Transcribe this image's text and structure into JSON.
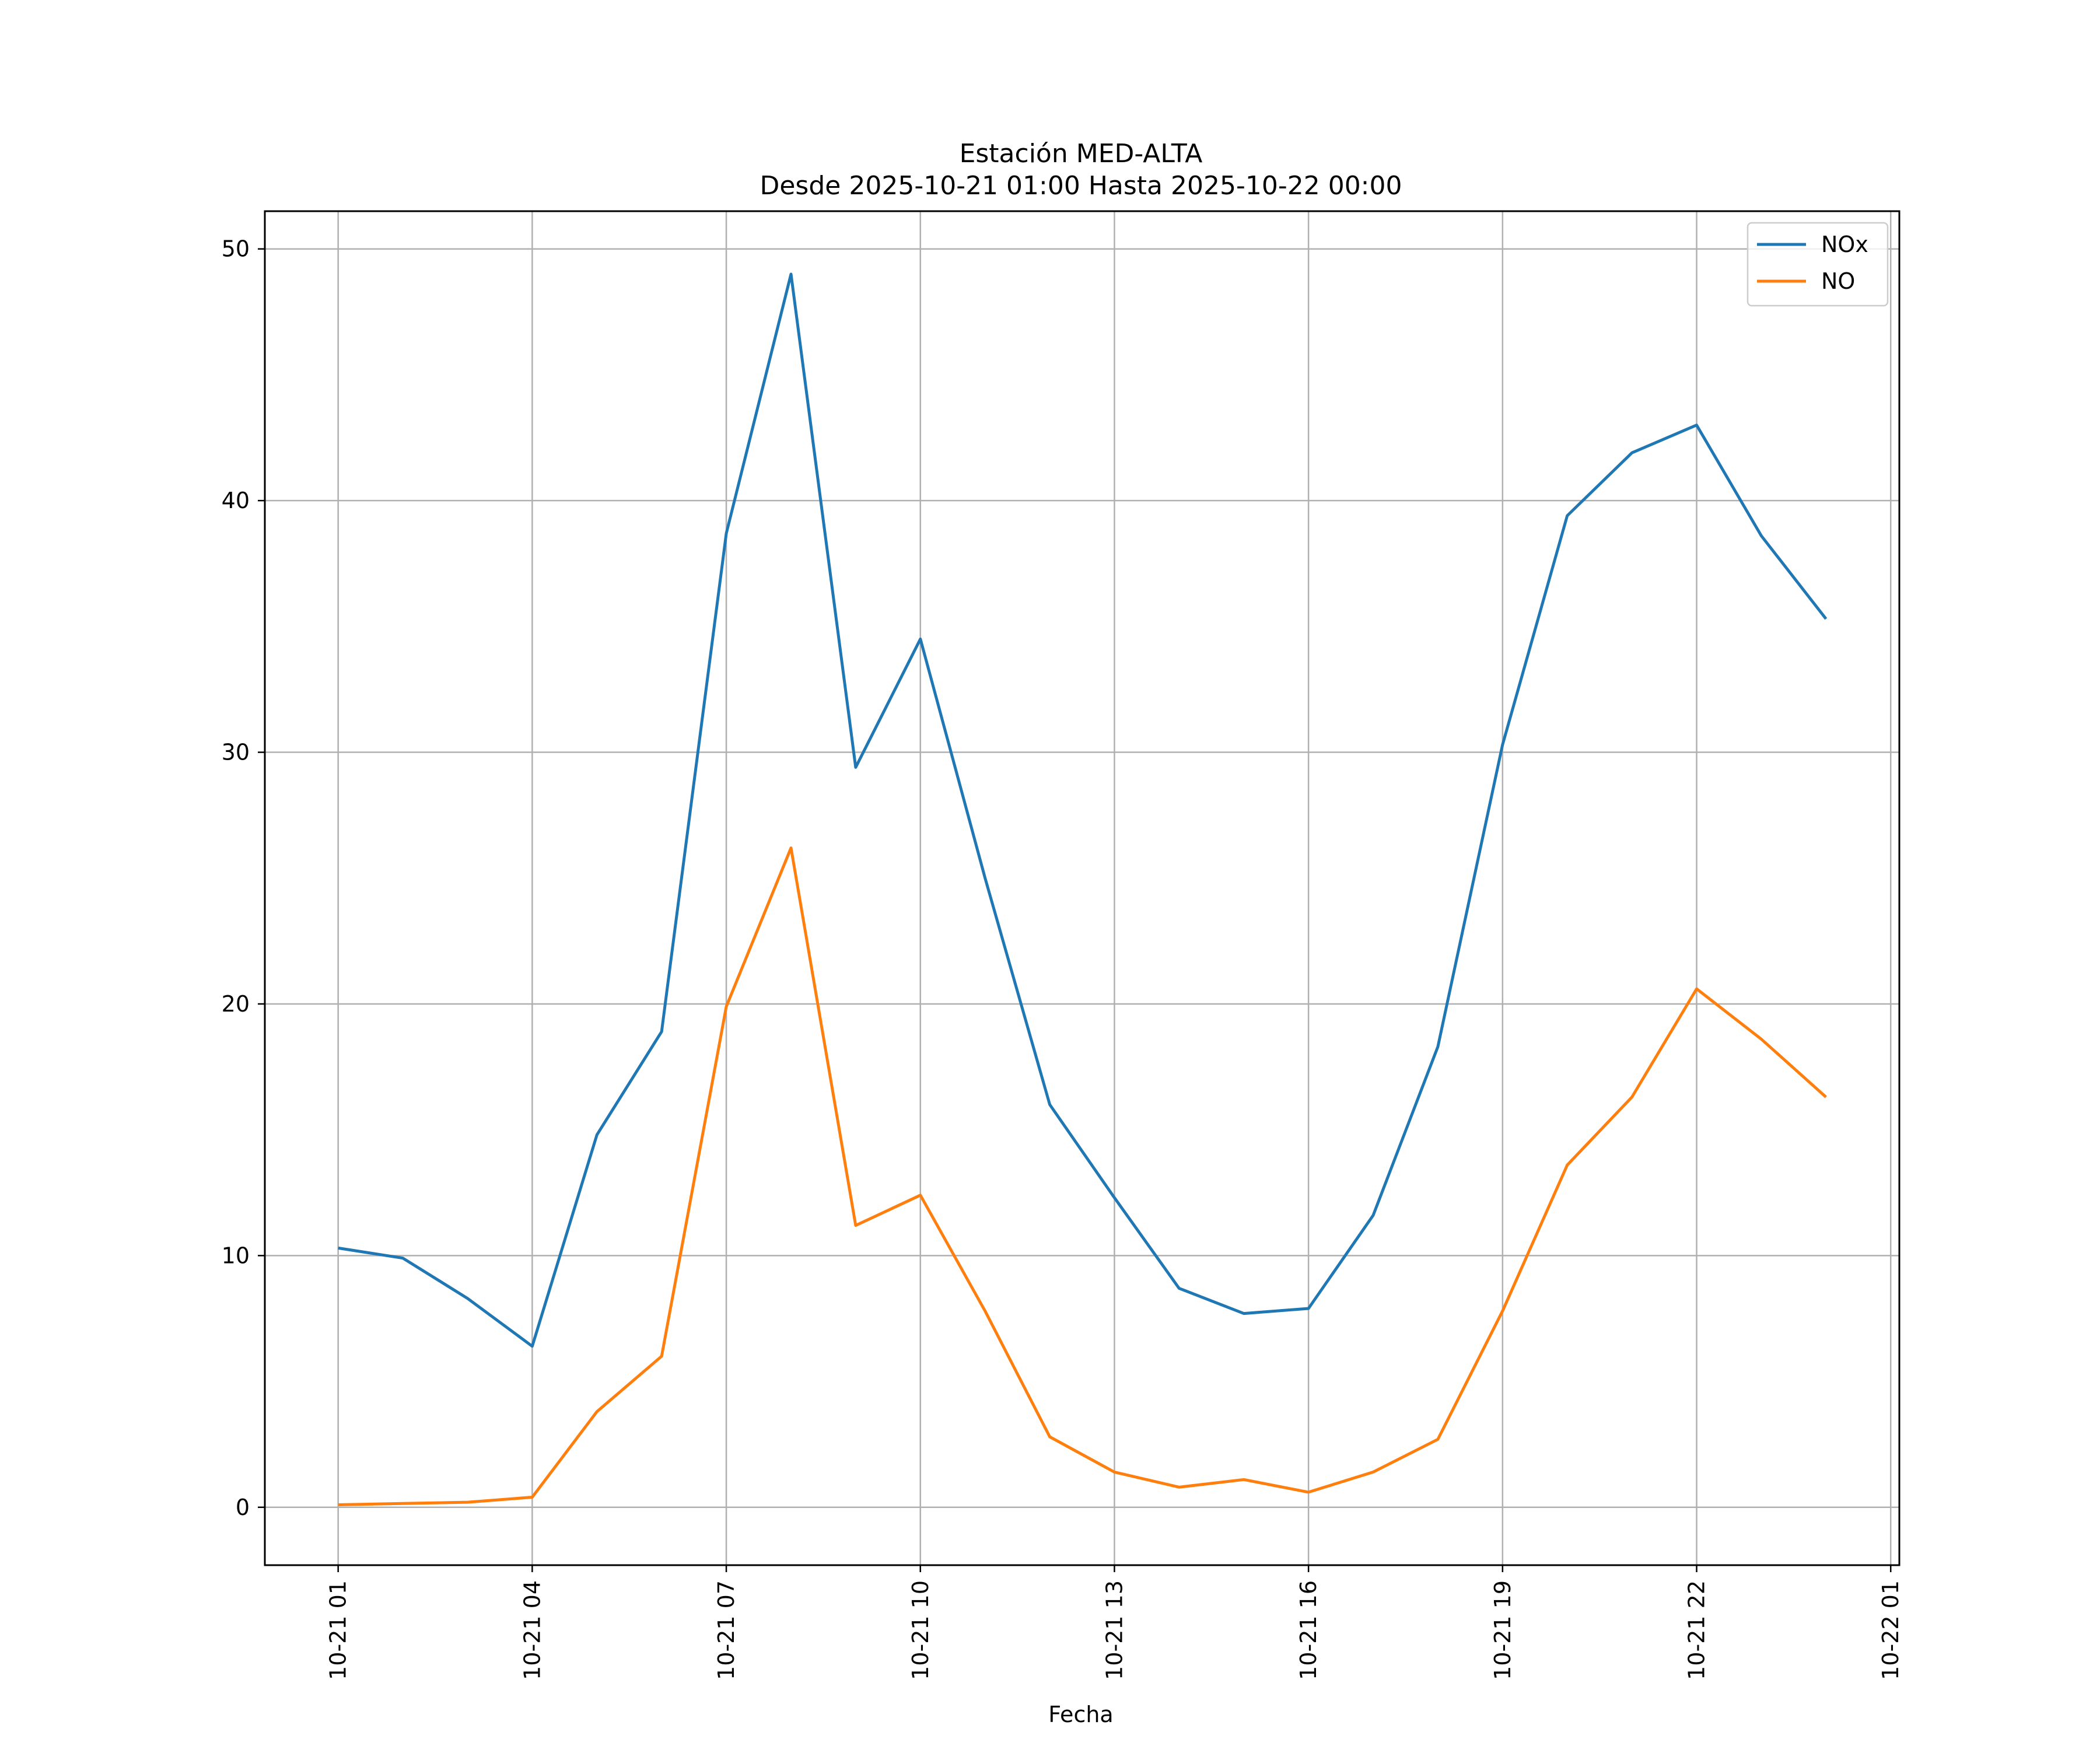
{
  "chart_data": {
    "type": "line",
    "title": "Estación MED-ALTA",
    "subtitle": "Desde 2025-10-21 01:00 Hasta 2025-10-22 00:00",
    "xlabel": "Fecha",
    "ylabel": "",
    "x": [
      "2025-10-21 01:00",
      "2025-10-21 02:00",
      "2025-10-21 03:00",
      "2025-10-21 04:00",
      "2025-10-21 05:00",
      "2025-10-21 06:00",
      "2025-10-21 07:00",
      "2025-10-21 08:00",
      "2025-10-21 09:00",
      "2025-10-21 10:00",
      "2025-10-21 11:00",
      "2025-10-21 12:00",
      "2025-10-21 13:00",
      "2025-10-21 14:00",
      "2025-10-21 15:00",
      "2025-10-21 16:00",
      "2025-10-21 17:00",
      "2025-10-21 18:00",
      "2025-10-21 19:00",
      "2025-10-21 20:00",
      "2025-10-21 21:00",
      "2025-10-21 22:00",
      "2025-10-21 23:00",
      "2025-10-22 00:00"
    ],
    "series": [
      {
        "name": "NOx",
        "color": "#1f77b4",
        "values": [
          10.3,
          9.9,
          8.3,
          6.4,
          14.8,
          18.9,
          38.7,
          49.0,
          29.4,
          34.5,
          25.0,
          16.0,
          12.3,
          8.7,
          7.7,
          7.9,
          11.6,
          18.3,
          30.3,
          39.4,
          41.9,
          43.0,
          38.6,
          35.3
        ]
      },
      {
        "name": "NO",
        "color": "#ff7f0e",
        "values": [
          0.1,
          0.15,
          0.2,
          0.4,
          3.8,
          6.0,
          19.9,
          26.2,
          11.2,
          12.4,
          7.8,
          2.8,
          1.4,
          0.8,
          1.1,
          0.6,
          1.4,
          2.7,
          7.8,
          13.6,
          16.3,
          20.6,
          18.6,
          16.3
        ]
      }
    ],
    "xticks": [
      "10-21 01",
      "10-21 04",
      "10-21 07",
      "10-21 10",
      "10-21 13",
      "10-21 16",
      "10-21 19",
      "10-21 22",
      "10-22 01"
    ],
    "yticks": [
      0,
      10,
      20,
      30,
      40,
      50
    ],
    "ylim": [
      -2.3,
      51.5
    ],
    "xlim": [
      "2025-10-20 23:52",
      "2025-10-22 01:08"
    ],
    "grid": true,
    "legend_position": "top-right"
  }
}
